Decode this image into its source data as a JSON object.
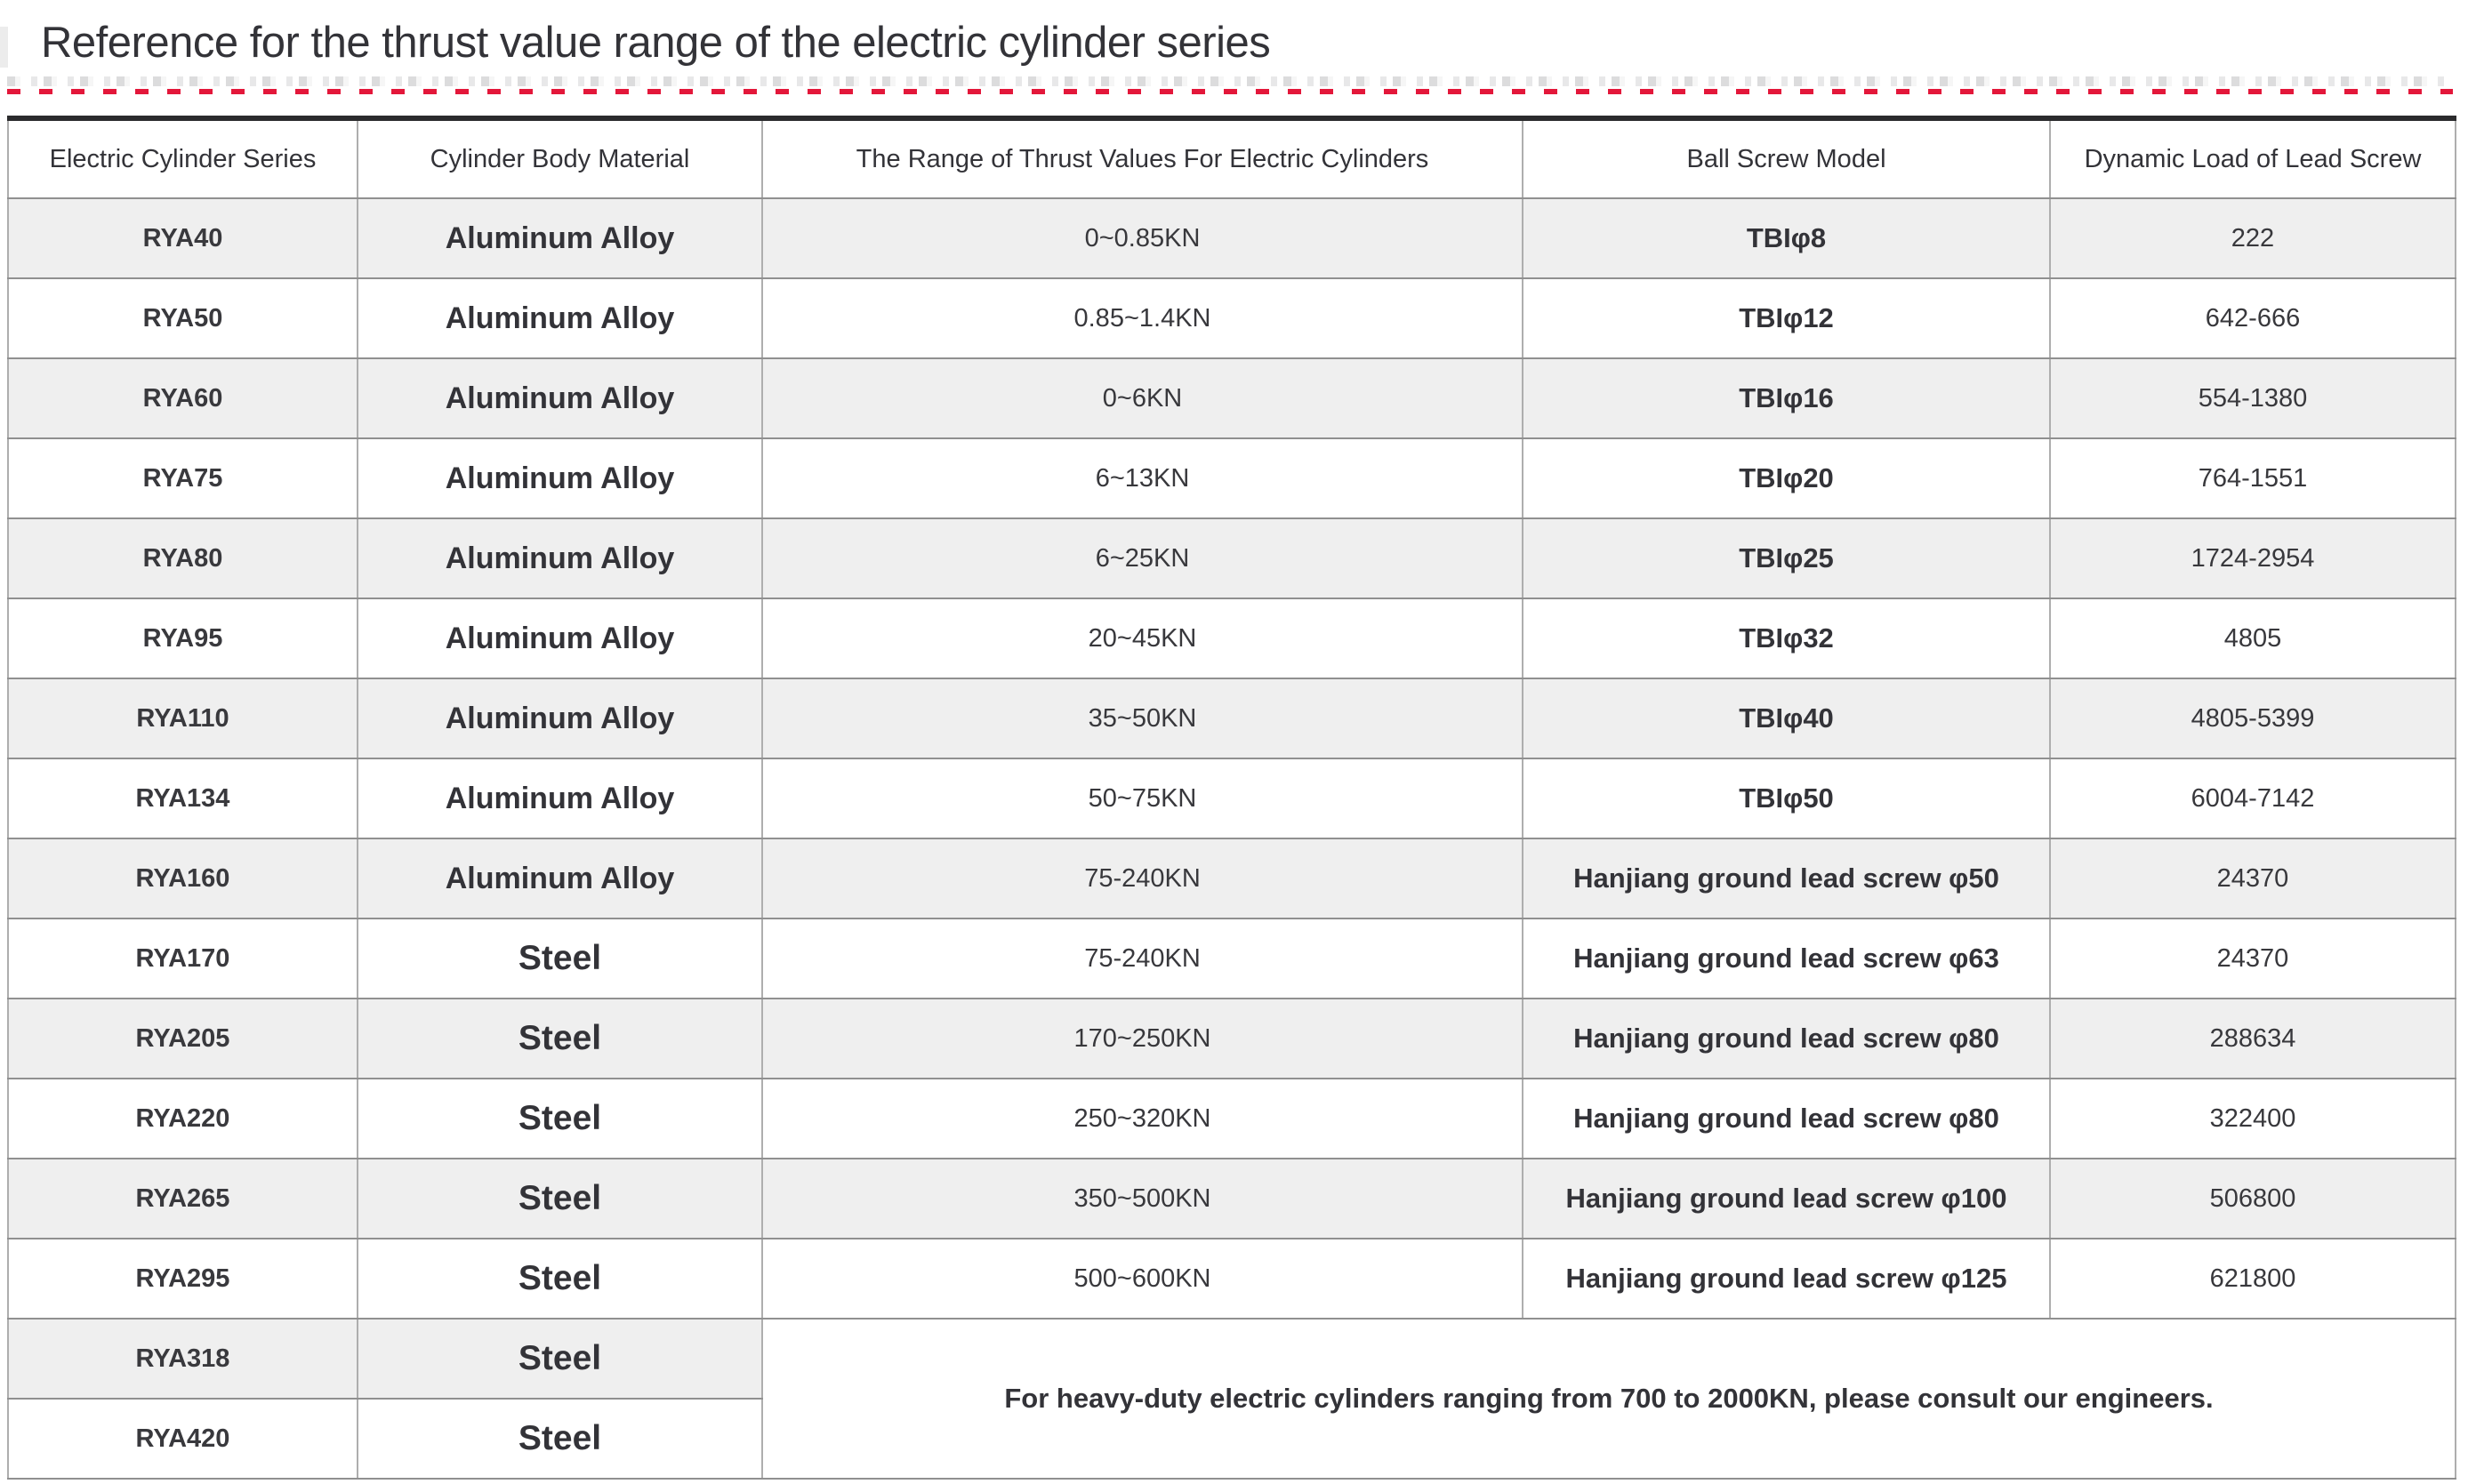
{
  "page": {
    "title": "Reference for the thrust value range of the electric cylinder series"
  },
  "accent": {
    "dash_color": "#e3173a",
    "shaded_row_color": "#efefef",
    "table_top_border_color": "#2b2b2d"
  },
  "table": {
    "headers": [
      "Electric Cylinder Series",
      "Cylinder Body Material",
      "The Range of Thrust Values For Electric Cylinders",
      "Ball Screw Model",
      "Dynamic Load of Lead Screw"
    ],
    "rows": [
      {
        "series": "RYA40",
        "material": "Aluminum Alloy",
        "thrust": "0~0.85KN",
        "screw": "TBIφ8",
        "load": "222"
      },
      {
        "series": "RYA50",
        "material": "Aluminum Alloy",
        "thrust": "0.85~1.4KN",
        "screw": "TBIφ12",
        "load": "642-666"
      },
      {
        "series": "RYA60",
        "material": "Aluminum Alloy",
        "thrust": "0~6KN",
        "screw": "TBIφ16",
        "load": "554-1380"
      },
      {
        "series": "RYA75",
        "material": "Aluminum Alloy",
        "thrust": "6~13KN",
        "screw": "TBIφ20",
        "load": "764-1551"
      },
      {
        "series": "RYA80",
        "material": "Aluminum Alloy",
        "thrust": "6~25KN",
        "screw": "TBIφ25",
        "load": "1724-2954"
      },
      {
        "series": "RYA95",
        "material": "Aluminum Alloy",
        "thrust": "20~45KN",
        "screw": "TBIφ32",
        "load": "4805"
      },
      {
        "series": "RYA110",
        "material": "Aluminum Alloy",
        "thrust": "35~50KN",
        "screw": "TBIφ40",
        "load": "4805-5399"
      },
      {
        "series": "RYA134",
        "material": "Aluminum Alloy",
        "thrust": "50~75KN",
        "screw": "TBIφ50",
        "load": "6004-7142"
      },
      {
        "series": "RYA160",
        "material": "Aluminum Alloy",
        "thrust": "75-240KN",
        "screw": "Hanjiang ground lead screw φ50",
        "load": "24370"
      },
      {
        "series": "RYA170",
        "material": "Steel",
        "thrust": "75-240KN",
        "screw": "Hanjiang ground lead screw φ63",
        "load": "24370"
      },
      {
        "series": "RYA205",
        "material": "Steel",
        "thrust": "170~250KN",
        "screw": "Hanjiang ground lead screw φ80",
        "load": "288634"
      },
      {
        "series": "RYA220",
        "material": "Steel",
        "thrust": "250~320KN",
        "screw": "Hanjiang ground lead screw φ80",
        "load": "322400"
      },
      {
        "series": "RYA265",
        "material": "Steel",
        "thrust": "350~500KN",
        "screw": "Hanjiang ground lead screw φ100",
        "load": "506800"
      },
      {
        "series": "RYA295",
        "material": "Steel",
        "thrust": "500~600KN",
        "screw": "Hanjiang ground lead screw φ125",
        "load": "621800"
      },
      {
        "series": "RYA318",
        "material": "Steel",
        "note_anchor": true
      },
      {
        "series": "RYA420",
        "material": "Steel"
      }
    ],
    "note": "For heavy-duty electric cylinders ranging from 700 to 2000KN, please consult our engineers."
  }
}
